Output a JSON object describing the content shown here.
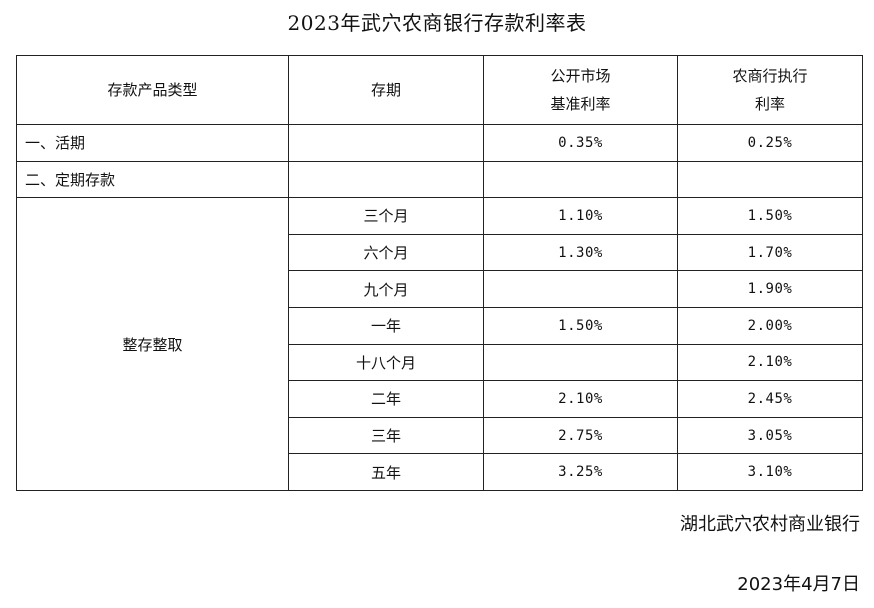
{
  "title": "2023年武穴农商银行存款利率表",
  "table": {
    "headers": {
      "product_type": "存款产品类型",
      "term": "存期",
      "benchmark_line1": "公开市场",
      "benchmark_line2": "基准利率",
      "bank_line1": "农商行执行",
      "bank_line2": "利率"
    },
    "demand": {
      "label": "一、活期",
      "benchmark": "0.35%",
      "bank": "0.25%"
    },
    "fixed_section": {
      "label": "二、定期存款"
    },
    "fixed_group_label": "整存整取",
    "fixed_rows": [
      {
        "term": "三个月",
        "benchmark": "1.10%",
        "bank": "1.50%"
      },
      {
        "term": "六个月",
        "benchmark": "1.30%",
        "bank": "1.70%"
      },
      {
        "term": "九个月",
        "benchmark": "",
        "bank": "1.90%"
      },
      {
        "term": "一年",
        "benchmark": "1.50%",
        "bank": "2.00%"
      },
      {
        "term": "十八个月",
        "benchmark": "",
        "bank": "2.10%"
      },
      {
        "term": "二年",
        "benchmark": "2.10%",
        "bank": "2.45%"
      },
      {
        "term": "三年",
        "benchmark": "2.75%",
        "bank": "3.05%"
      },
      {
        "term": "五年",
        "benchmark": "3.25%",
        "bank": "3.10%"
      }
    ]
  },
  "footer": {
    "bank_name": "湖北武穴农村商业银行",
    "date": "2023年4月7日"
  }
}
